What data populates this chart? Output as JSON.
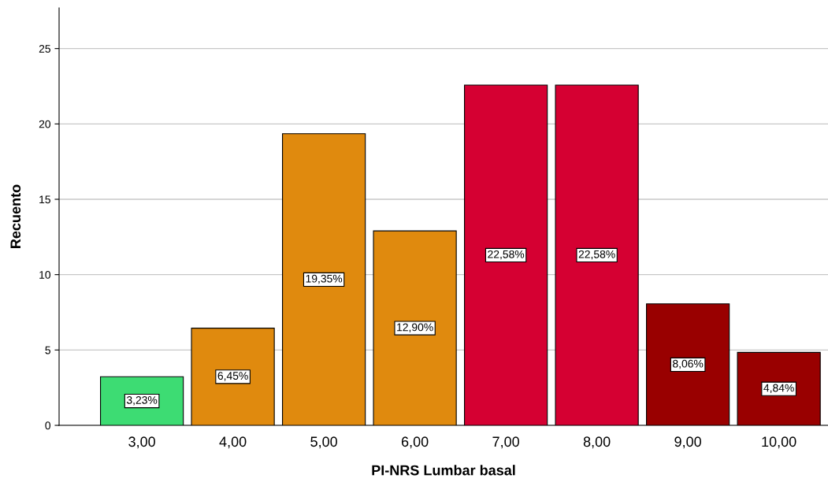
{
  "chart_data": {
    "type": "bar",
    "xlabel": "PI-NRS Lumbar basal",
    "ylabel": "Recuento",
    "categories": [
      "3,00",
      "4,00",
      "5,00",
      "6,00",
      "7,00",
      "8,00",
      "9,00",
      "10,00"
    ],
    "values": [
      3.23,
      6.45,
      19.35,
      12.9,
      22.58,
      22.58,
      8.06,
      4.84
    ],
    "colors": [
      "#3ddc73",
      "#e08a0e",
      "#e08a0e",
      "#e08a0e",
      "#d50032",
      "#d50032",
      "#990000",
      "#990000"
    ],
    "value_labels": [
      "3,23%",
      "6,45%",
      "19,35%",
      "12,90%",
      "22,58%",
      "22,58%",
      "8,06%",
      "4,84%"
    ],
    "ylim": [
      0,
      27.7
    ],
    "yticks": [
      0,
      5,
      10,
      15,
      20,
      25
    ],
    "grid": "y"
  }
}
